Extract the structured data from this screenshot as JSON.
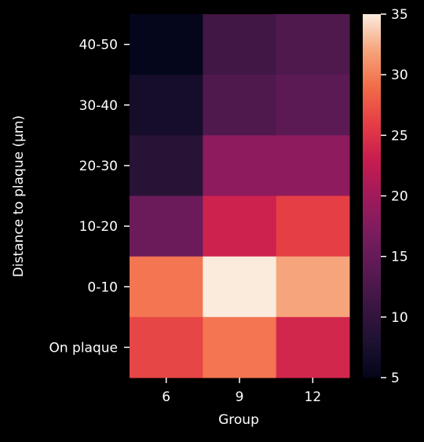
{
  "chart_data": {
    "type": "heatmap",
    "title": "",
    "xlabel": "Group",
    "ylabel": "Distance to plaque (µm)",
    "x_categories": [
      "6",
      "9",
      "12"
    ],
    "y_categories": [
      "40-50",
      "30-40",
      "20-30",
      "10-20",
      "0-10",
      "On plaque"
    ],
    "values": [
      [
        5.2,
        11.5,
        13.0
      ],
      [
        7.0,
        13.0,
        14.0
      ],
      [
        9.0,
        18.5,
        18.5
      ],
      [
        15.5,
        23.5,
        26.0
      ],
      [
        29.5,
        35.0,
        32.0
      ],
      [
        26.5,
        29.5,
        24.0
      ]
    ],
    "colorbar": {
      "min": 5,
      "max": 35,
      "ticks": [
        5,
        10,
        15,
        20,
        25,
        30,
        35
      ],
      "tick_labels": [
        "5",
        "10",
        "15",
        "20",
        "25",
        "30",
        "35"
      ]
    },
    "colormap_stops": [
      {
        "v": 0.0,
        "c": "#03051a"
      },
      {
        "v": 0.1,
        "c": "#1e1132"
      },
      {
        "v": 0.2,
        "c": "#3b1642"
      },
      {
        "v": 0.3,
        "c": "#5b1a54"
      },
      {
        "v": 0.4,
        "c": "#7b1c5f"
      },
      {
        "v": 0.5,
        "c": "#a11a5b"
      },
      {
        "v": 0.6,
        "c": "#c71c4f"
      },
      {
        "v": 0.7,
        "c": "#e53e45"
      },
      {
        "v": 0.8,
        "c": "#f26c49"
      },
      {
        "v": 0.9,
        "c": "#f6a47b"
      },
      {
        "v": 1.0,
        "c": "#faebdd"
      }
    ],
    "background": "#000000",
    "text_color": "#ffffff"
  }
}
